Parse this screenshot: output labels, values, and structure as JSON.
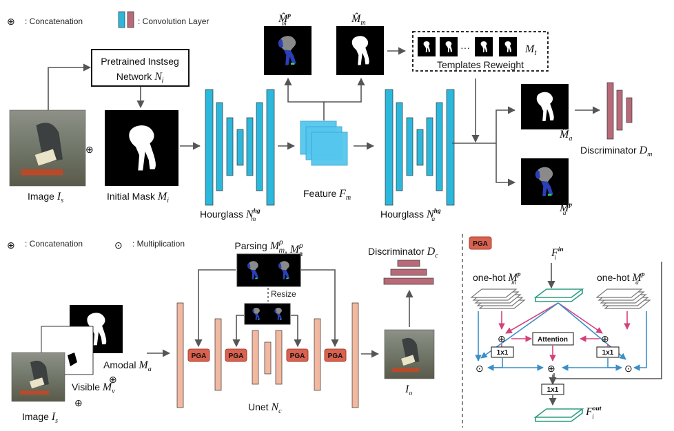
{
  "colors": {
    "conv_cyan": "#2bb8dc",
    "conv_red": "#b86a78",
    "unet_salmon": "#f2b8a0",
    "pga_red": "#d9614f",
    "pink_arrow": "#d6407a",
    "blue_arrow": "#3a8fc7",
    "teal": "#2a9d7f",
    "arrow_gray": "#555555"
  },
  "top": {
    "legend": {
      "concat_sym": "⊕",
      "concat_label": ": Concatenation",
      "conv_label": ": Convolution Layer"
    },
    "pretrained": {
      "line1": "Pretrained Instseg",
      "line2": "Network",
      "sym": "N",
      "sub": "i"
    },
    "image_label": {
      "text": "Image ",
      "sym": "I",
      "sub": "s"
    },
    "initial_mask": {
      "text": "Initial Mask ",
      "sym": "M",
      "sub": "i"
    },
    "hourglass_m": {
      "text": "Hourglass ",
      "sym": "N",
      "sub": "m",
      "sup": "hg"
    },
    "feature": {
      "text": "Feature ",
      "sym": "F",
      "sub": "m"
    },
    "hourglass_a": {
      "text": "Hourglass ",
      "sym": "N",
      "sub": "a",
      "sup": "hg"
    },
    "mhat_p_m": {
      "sym": "M̂",
      "sub": "m",
      "sup": "p"
    },
    "mhat_m": {
      "sym": "M̂",
      "sub": "m"
    },
    "templates": {
      "label": "Templates Reweight",
      "dots": "···",
      "sym": "M",
      "sub": "t"
    },
    "mhat_a": {
      "sym": "M̂",
      "sub": "a"
    },
    "mhat_p_a": {
      "sym": "M̂",
      "sub": "a",
      "sup": "p"
    },
    "discriminator": {
      "text": "Discriminator ",
      "sym": "D",
      "sub": "m"
    }
  },
  "bottom": {
    "legend": {
      "concat_sym": "⊕",
      "concat_label": ": Concatenation",
      "mult_sym": "⊙",
      "mult_label": ": Multiplication"
    },
    "parsing": {
      "text": "Parsing ",
      "sym1": "M",
      "sub1": "m",
      "sup1": "p",
      "sep": ", ",
      "sym2": "M",
      "sub2": "a",
      "sup2": "p"
    },
    "resize": "Resize",
    "amodal": {
      "text": "Amodal ",
      "sym": "M",
      "sub": "a"
    },
    "visible": {
      "text": "Visible ",
      "sym": "M",
      "sub": "v"
    },
    "image": {
      "text": "Image ",
      "sym": "I",
      "sub": "s"
    },
    "pga": "PGA",
    "unet": {
      "text": "Unet ",
      "sym": "N",
      "sub": "c"
    },
    "io": {
      "sym": "I",
      "sub": "o"
    },
    "discriminator": {
      "text": "Discriminator ",
      "sym": "D",
      "sub": "c"
    },
    "plus": "⊕"
  },
  "pga_panel": {
    "badge": "PGA",
    "fin": {
      "sym": "F",
      "sub": "i",
      "sup": "in"
    },
    "onehot_m": {
      "text": "one-hot ",
      "sym": "M",
      "sub": "m",
      "sup": "p"
    },
    "onehot_a": {
      "text": "one-hot ",
      "sym": "M",
      "sub": "a",
      "sup": "p"
    },
    "attention": "Attention",
    "conv": "1x1",
    "fout": {
      "sym": "F",
      "sub": "i",
      "sup": "out"
    },
    "plus": "⊕",
    "mult": "⊙"
  }
}
